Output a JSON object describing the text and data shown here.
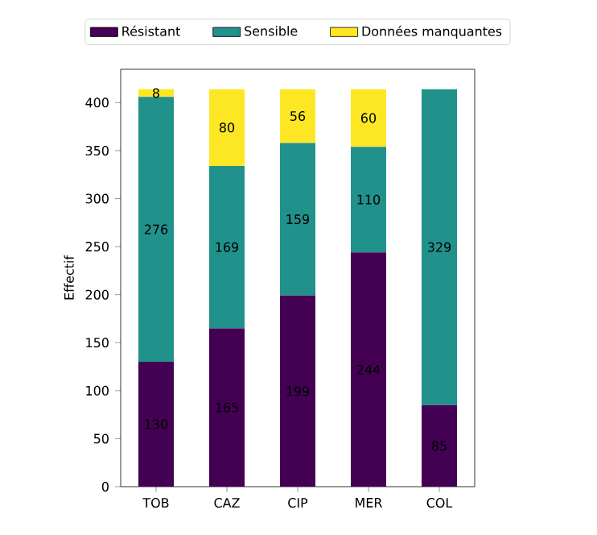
{
  "chart_data": {
    "type": "bar",
    "stacked": true,
    "ylabel": "Effectif",
    "categories": [
      "TOB",
      "CAZ",
      "CIP",
      "MER",
      "COL"
    ],
    "series": [
      {
        "name": "Résistant",
        "color": "#440154",
        "values": [
          130,
          165,
          199,
          244,
          85
        ],
        "value_labels": [
          "130",
          "165",
          "199",
          "244",
          "85"
        ]
      },
      {
        "name": "Sensible",
        "color": "#21918c",
        "values": [
          276,
          169,
          159,
          110,
          329
        ],
        "value_labels": [
          "276",
          "169",
          "159",
          "110",
          "329"
        ]
      },
      {
        "name": "Données manquantes",
        "color": "#fde725",
        "values": [
          8,
          80,
          56,
          60,
          0
        ],
        "value_labels": [
          "8",
          "80",
          "56",
          "60",
          null
        ]
      }
    ],
    "ylim": [
      0,
      434.7
    ],
    "yticks": [
      0,
      50,
      100,
      150,
      200,
      250,
      300,
      350,
      400
    ],
    "grid": false,
    "legend": "top"
  }
}
